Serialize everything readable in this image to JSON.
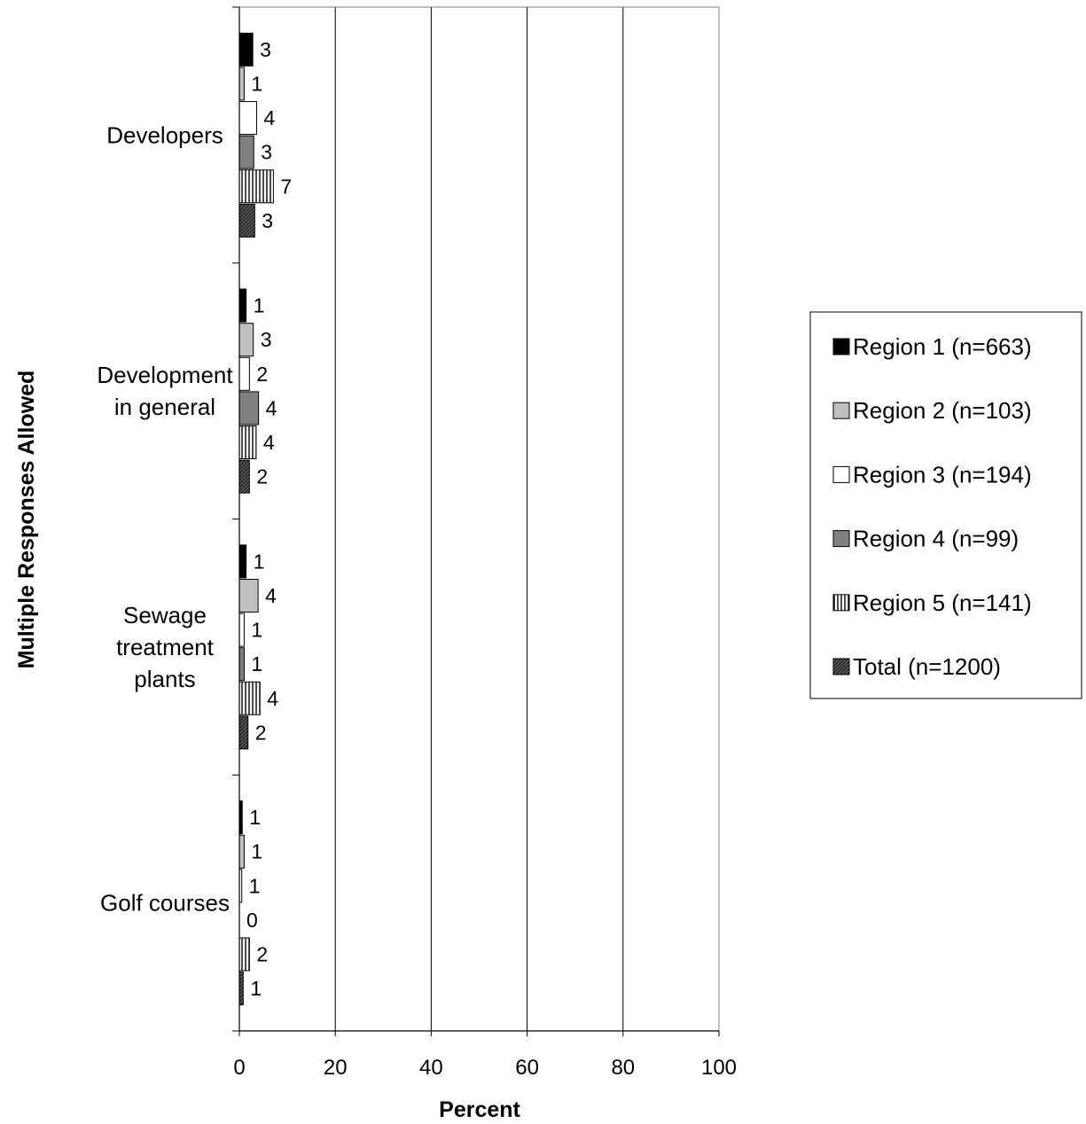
{
  "chart_data": {
    "type": "bar",
    "orientation": "horizontal",
    "title": "",
    "xlabel": "Percent",
    "ylabel": "Multiple Responses Allowed",
    "xlim": [
      0,
      100
    ],
    "xticks": [
      "0",
      "20",
      "40",
      "60",
      "80",
      "100"
    ],
    "grid": true,
    "legend_position": "right",
    "categories": [
      [
        "Developers"
      ],
      [
        "Development",
        "in general"
      ],
      [
        "Sewage",
        "treatment",
        "plants"
      ],
      [
        "Golf courses"
      ]
    ],
    "series": [
      {
        "name": "Region 1 (n=663)",
        "fill": "#000000",
        "pattern": "solid",
        "values": [
          3,
          1,
          1,
          1
        ],
        "exact": [
          2.8,
          1.4,
          1.4,
          0.6
        ]
      },
      {
        "name": "Region 2 (n=103)",
        "fill": "#c0c0c0",
        "pattern": "solid",
        "values": [
          1,
          3,
          4,
          1
        ],
        "exact": [
          1.0,
          2.9,
          3.9,
          1.0
        ]
      },
      {
        "name": "Region 3 (n=194)",
        "fill": "#ffffff",
        "pattern": "solid",
        "values": [
          4,
          2,
          1,
          1
        ],
        "exact": [
          3.6,
          2.1,
          1.0,
          0.5
        ]
      },
      {
        "name": "Region 4 (n=99)",
        "fill": "#808080",
        "pattern": "solid",
        "values": [
          3,
          4,
          1,
          0
        ],
        "exact": [
          3.0,
          4.0,
          1.0,
          0.0
        ]
      },
      {
        "name": "Region 5 (n=141)",
        "fill": "#ffffff",
        "pattern": "vertical-lines",
        "values": [
          7,
          4,
          4,
          2
        ],
        "exact": [
          7.1,
          3.5,
          4.3,
          2.1
        ]
      },
      {
        "name": "Total (n=1200)",
        "fill": "#606060",
        "pattern": "diagonal-hatch",
        "values": [
          3,
          2,
          2,
          1
        ],
        "exact": [
          3.2,
          2.1,
          1.8,
          0.8
        ]
      }
    ]
  }
}
